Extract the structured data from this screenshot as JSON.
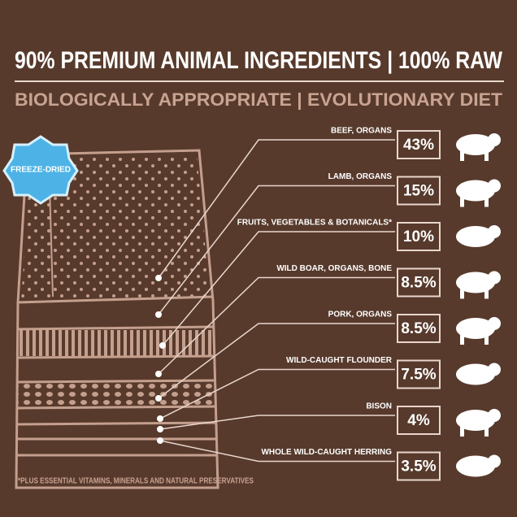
{
  "header": {
    "title": "90% PREMIUM ANIMAL INGREDIENTS | 100% RAW",
    "subtitle": "BIOLOGICALLY APPROPRIATE | EVOLUTIONARY DIET"
  },
  "badge": "FREEZE-DRIED",
  "ingredients": [
    {
      "label": "BEEF, ORGANS",
      "percent": "43%"
    },
    {
      "label": "LAMB, ORGANS",
      "percent": "15%"
    },
    {
      "label": "FRUITS, VEGETABLES & BOTANICALS*",
      "percent": "10%"
    },
    {
      "label": "WILD BOAR, ORGANS, BONE",
      "percent": "8.5%"
    },
    {
      "label": "PORK, ORGANS",
      "percent": "8.5%"
    },
    {
      "label": "WILD-CAUGHT FLOUNDER",
      "percent": "7.5%"
    },
    {
      "label": "BISON",
      "percent": "4%"
    },
    {
      "label": "WHOLE WILD-CAUGHT HERRING",
      "percent": "3.5%"
    }
  ],
  "footnote": "*PLUS ESSENTIAL VITAMINS, MINERALS AND NATURAL PRESERVATIVES"
}
